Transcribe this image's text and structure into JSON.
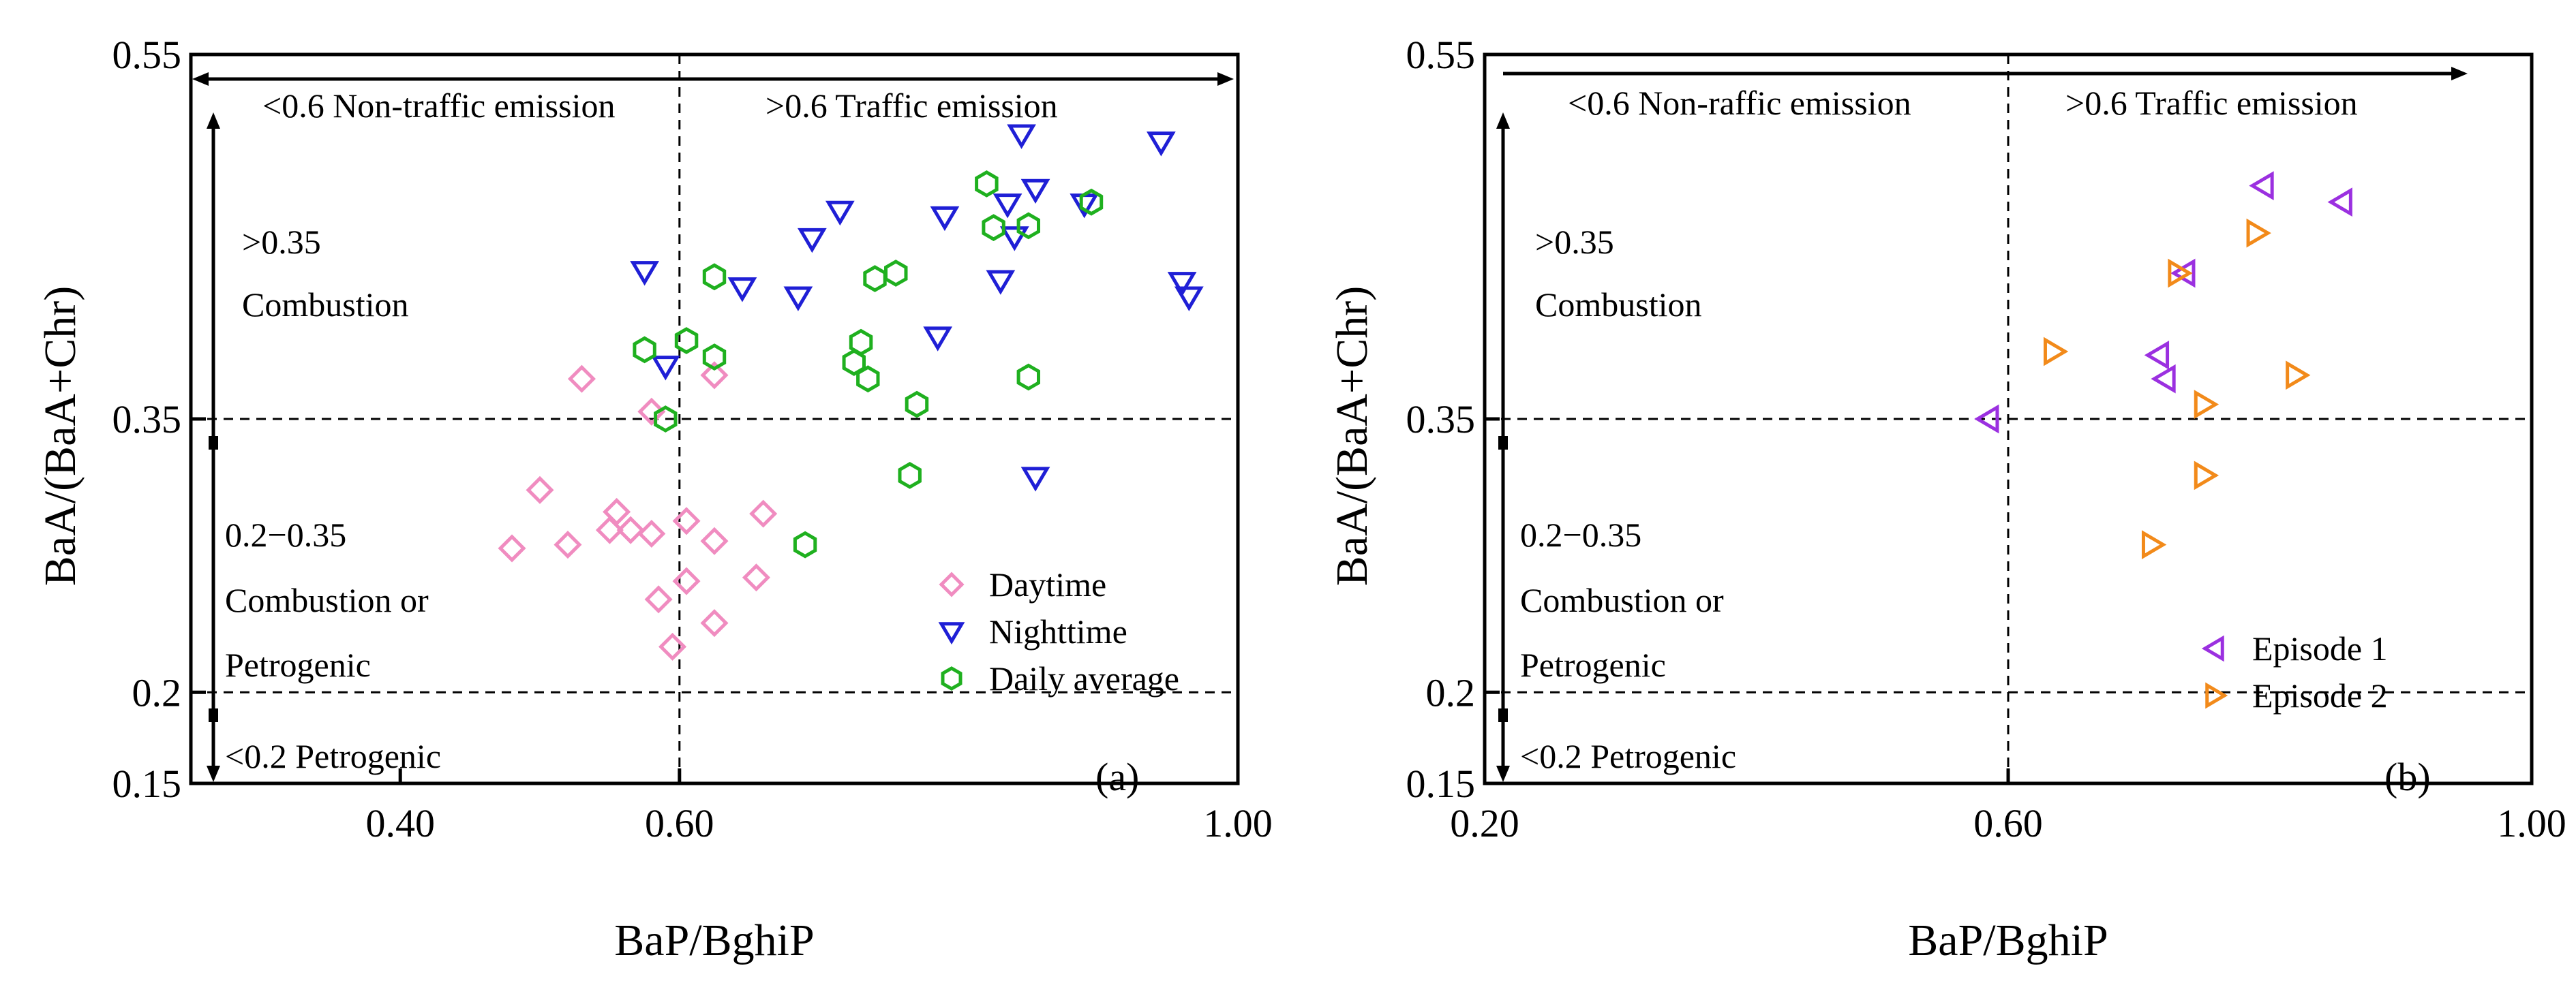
{
  "chart_data": [
    {
      "type": "scatter",
      "panel_label": "(a)",
      "xlabel": "BaP/BghiP",
      "ylabel": "BaA/(BaA+Chr)",
      "xlim": [
        0.25,
        1.0
      ],
      "ylim": [
        0.15,
        0.55
      ],
      "xticks": [
        {
          "v": 0.4,
          "label": "0.40"
        },
        {
          "v": 0.6,
          "label": "0.60"
        },
        {
          "v": 1.0,
          "label": "1.00"
        }
      ],
      "yticks": [
        {
          "v": 0.55,
          "label": "0.55"
        },
        {
          "v": 0.35,
          "label": "0.35"
        },
        {
          "v": 0.2,
          "label": "0.2"
        },
        {
          "v": 0.15,
          "label": "0.15"
        }
      ],
      "vline": 0.6,
      "hlines": [
        0.35,
        0.2
      ],
      "annotations": {
        "non_traffic": "<0.6 Non-traffic emission",
        "traffic": ">0.6 Traffic emission",
        "combustion_gt": ">0.35",
        "combustion": "Combustion",
        "range_label": "0.2−0.35",
        "combustion_or": "Combustion or",
        "petrogenic": "Petrogenic",
        "petrogenic_lt": "<0.2 Petrogenic"
      },
      "series": [
        {
          "name": "Daytime",
          "marker": "diamond",
          "color": "#f08cc0",
          "points": [
            [
              0.48,
              0.279
            ],
            [
              0.5,
              0.311
            ],
            [
              0.52,
              0.281
            ],
            [
              0.53,
              0.372
            ],
            [
              0.55,
              0.289
            ],
            [
              0.555,
              0.299
            ],
            [
              0.565,
              0.289
            ],
            [
              0.58,
              0.354
            ],
            [
              0.58,
              0.287
            ],
            [
              0.585,
              0.251
            ],
            [
              0.595,
              0.225
            ],
            [
              0.605,
              0.294
            ],
            [
              0.605,
              0.261
            ],
            [
              0.625,
              0.283
            ],
            [
              0.625,
              0.374
            ],
            [
              0.625,
              0.238
            ],
            [
              0.655,
              0.263
            ],
            [
              0.66,
              0.298
            ]
          ]
        },
        {
          "name": "Nighttime",
          "marker": "triangle-down",
          "color": "#1f1fd6",
          "points": [
            [
              0.575,
              0.431
            ],
            [
              0.59,
              0.379
            ],
            [
              0.645,
              0.422
            ],
            [
              0.685,
              0.417
            ],
            [
              0.695,
              0.449
            ],
            [
              0.715,
              0.464
            ],
            [
              0.785,
              0.395
            ],
            [
              0.79,
              0.461
            ],
            [
              0.83,
              0.426
            ],
            [
              0.835,
              0.468
            ],
            [
              0.84,
              0.45
            ],
            [
              0.845,
              0.506
            ],
            [
              0.855,
              0.476
            ],
            [
              0.855,
              0.318
            ],
            [
              0.89,
              0.468
            ],
            [
              0.945,
              0.502
            ],
            [
              0.96,
              0.425
            ],
            [
              0.965,
              0.417
            ]
          ]
        },
        {
          "name": "Daily average",
          "marker": "hexagon",
          "color": "#1fb01f",
          "points": [
            [
              0.575,
              0.388
            ],
            [
              0.59,
              0.35
            ],
            [
              0.605,
              0.393
            ],
            [
              0.625,
              0.428
            ],
            [
              0.625,
              0.384
            ],
            [
              0.69,
              0.281
            ],
            [
              0.725,
              0.381
            ],
            [
              0.73,
              0.392
            ],
            [
              0.735,
              0.372
            ],
            [
              0.74,
              0.427
            ],
            [
              0.755,
              0.43
            ],
            [
              0.765,
              0.319
            ],
            [
              0.77,
              0.358
            ],
            [
              0.82,
              0.479
            ],
            [
              0.825,
              0.455
            ],
            [
              0.85,
              0.373
            ],
            [
              0.85,
              0.456
            ],
            [
              0.895,
              0.469
            ]
          ]
        }
      ],
      "legend": {
        "position": "bottom-right",
        "entries": [
          "Daytime",
          "Nighttime",
          "Daily average"
        ]
      }
    },
    {
      "type": "scatter",
      "panel_label": "(b)",
      "xlabel": "BaP/BghiP",
      "ylabel": "BaA/(BaA+Chr)",
      "xlim": [
        0.2,
        1.0
      ],
      "ylim": [
        0.15,
        0.55
      ],
      "xticks": [
        {
          "v": 0.2,
          "label": "0.20"
        },
        {
          "v": 0.6,
          "label": "0.60"
        },
        {
          "v": 1.0,
          "label": "1.00"
        }
      ],
      "yticks": [
        {
          "v": 0.55,
          "label": "0.55"
        },
        {
          "v": 0.35,
          "label": "0.35"
        },
        {
          "v": 0.2,
          "label": "0.2"
        },
        {
          "v": 0.15,
          "label": "0.15"
        }
      ],
      "vline": 0.6,
      "hlines": [
        0.35,
        0.2
      ],
      "annotations": {
        "non_traffic": "<0.6 Non-raffic emission",
        "traffic": ">0.6 Traffic emission",
        "combustion_gt": ">0.35",
        "combustion": "Combustion",
        "range_label": "0.2−0.35",
        "combustion_or": "Combustion or",
        "petrogenic": "Petrogenic",
        "petrogenic_lt": "<0.2 Petrogenic"
      },
      "series": [
        {
          "name": "Episode 1",
          "marker": "triangle-left",
          "color": "#9b30e0",
          "points": [
            [
              0.585,
              0.35
            ],
            [
              0.715,
              0.385
            ],
            [
              0.72,
              0.372
            ],
            [
              0.735,
              0.43
            ],
            [
              0.795,
              0.478
            ],
            [
              0.855,
              0.469
            ]
          ]
        },
        {
          "name": "Episode 2",
          "marker": "triangle-right",
          "color": "#f28a1a",
          "points": [
            [
              0.635,
              0.387
            ],
            [
              0.71,
              0.281
            ],
            [
              0.73,
              0.43
            ],
            [
              0.75,
              0.319
            ],
            [
              0.75,
              0.358
            ],
            [
              0.79,
              0.452
            ],
            [
              0.82,
              0.374
            ]
          ]
        }
      ],
      "legend": {
        "position": "bottom-right",
        "entries": [
          "Episode 1",
          "Episode 2"
        ]
      }
    }
  ]
}
